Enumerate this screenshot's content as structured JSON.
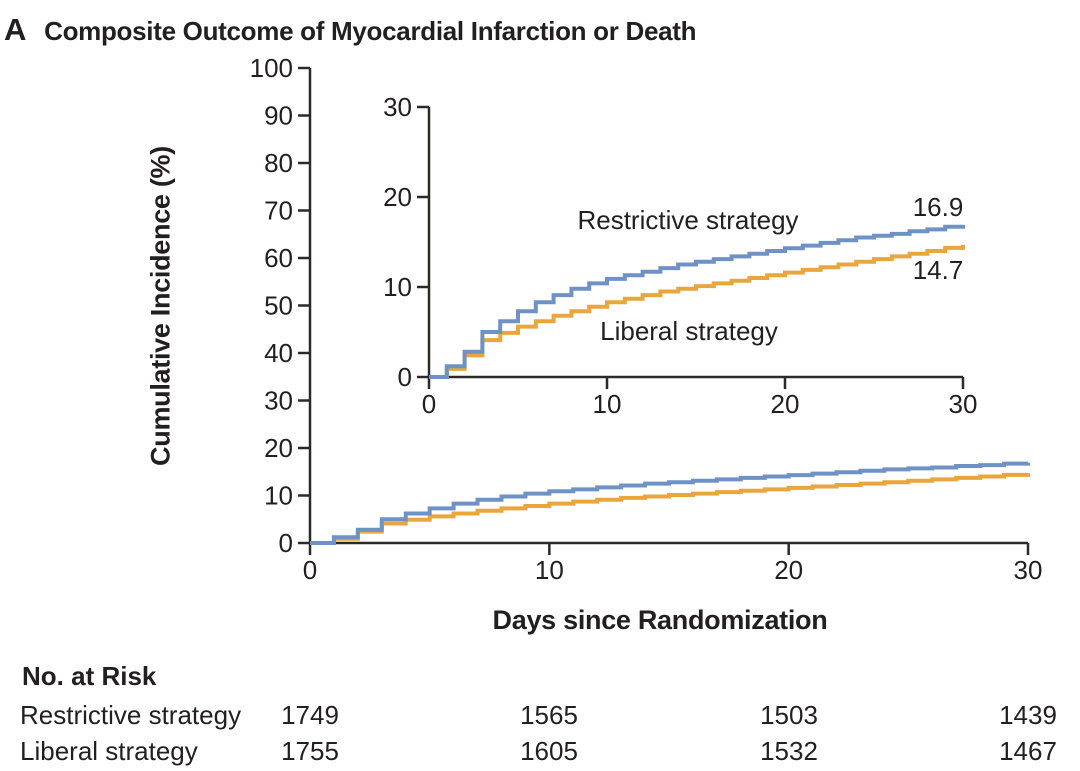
{
  "panel_label": "A",
  "title": "Composite Outcome of Myocardial Infarction or Death",
  "colors": {
    "restrictive_blue": "#6F92C6",
    "liberal_orange": "#EAA63D",
    "axis": "#2B2A29",
    "text": "#231F20"
  },
  "axis_titles": {
    "y": "Cumulative Incidence (%)",
    "x": "Days since Randomization"
  },
  "inset_labels": {
    "restrictive": "Restrictive strategy",
    "liberal": "Liberal strategy",
    "restrictive_end": "16.9",
    "liberal_end": "14.7"
  },
  "chart_data": {
    "type": "line",
    "subtype": "step_cumulative_incidence",
    "title": "Composite Outcome of Myocardial Infarction or Death",
    "xlabel": "Days since Randomization",
    "ylabel": "Cumulative Incidence (%)",
    "x_days": [
      0,
      1,
      2,
      3,
      4,
      5,
      6,
      7,
      8,
      9,
      10,
      11,
      12,
      13,
      14,
      15,
      16,
      17,
      18,
      19,
      20,
      21,
      22,
      23,
      24,
      25,
      26,
      27,
      28,
      29,
      30
    ],
    "series": [
      {
        "name": "Restrictive strategy",
        "color": "#6F92C6",
        "end_value": 16.9,
        "end_value_label": "16.9",
        "values": [
          0,
          1.2,
          2.8,
          5.0,
          6.2,
          7.3,
          8.3,
          9.1,
          9.8,
          10.4,
          10.9,
          11.3,
          11.7,
          12.1,
          12.5,
          12.8,
          13.1,
          13.4,
          13.7,
          14.0,
          14.3,
          14.6,
          14.9,
          15.2,
          15.5,
          15.7,
          15.9,
          16.2,
          16.4,
          16.7,
          16.9
        ]
      },
      {
        "name": "Liberal strategy",
        "color": "#EAA63D",
        "end_value": 14.7,
        "end_value_label": "14.7",
        "values": [
          0,
          0.9,
          2.4,
          4.1,
          4.9,
          5.6,
          6.2,
          6.8,
          7.3,
          7.8,
          8.3,
          8.7,
          9.1,
          9.5,
          9.8,
          10.1,
          10.4,
          10.7,
          11.0,
          11.3,
          11.6,
          11.9,
          12.2,
          12.5,
          12.8,
          13.1,
          13.4,
          13.7,
          14.0,
          14.35,
          14.7
        ]
      }
    ],
    "main_axis": {
      "xlim": [
        0,
        30
      ],
      "ylim": [
        0,
        100
      ],
      "xticks": [
        0,
        10,
        20,
        30
      ],
      "yticks": [
        0,
        10,
        20,
        30,
        40,
        50,
        60,
        70,
        80,
        90,
        100
      ],
      "grid": false
    },
    "inset_axis": {
      "xlim": [
        0,
        30
      ],
      "ylim": [
        0,
        30
      ],
      "xticks": [
        0,
        10,
        20,
        30
      ],
      "yticks": [
        0,
        10,
        20,
        30
      ],
      "grid": false
    },
    "legend_position": "inline-curve-labels"
  },
  "risk_table": {
    "header": "No. at Risk",
    "columns_days": [
      0,
      10,
      20,
      30
    ],
    "rows": [
      {
        "label": "Restrictive strategy",
        "values": [
          "1749",
          "1565",
          "1503",
          "1439"
        ]
      },
      {
        "label": "Liberal strategy",
        "values": [
          "1755",
          "1605",
          "1532",
          "1467"
        ]
      }
    ]
  }
}
